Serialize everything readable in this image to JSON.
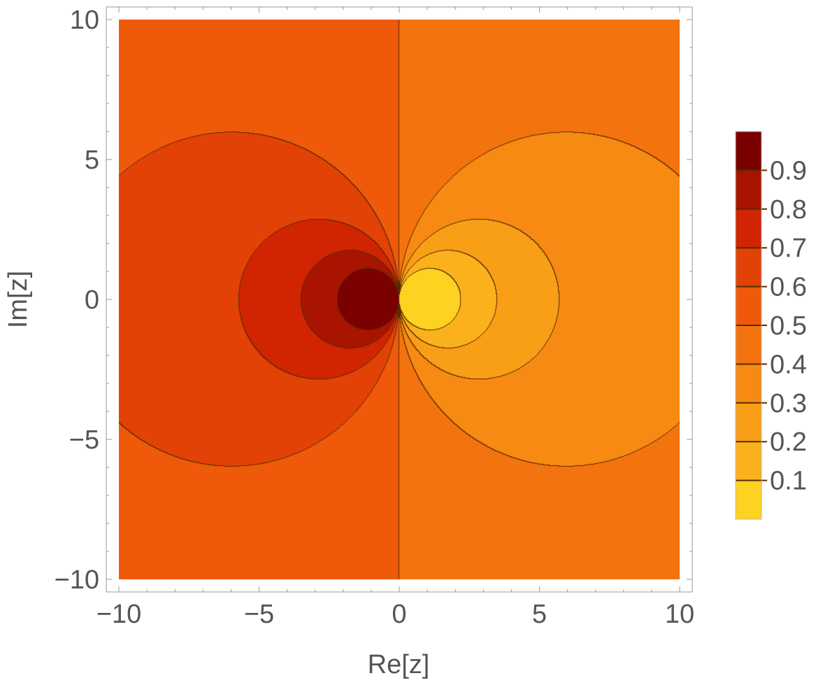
{
  "chart_data": {
    "type": "heatmap",
    "subtype": "contour",
    "title": "",
    "xlabel": "Re[z]",
    "ylabel": "Im[z]",
    "xlim": [
      -10,
      10
    ],
    "ylim": [
      -10,
      10
    ],
    "x_ticks": [
      -10,
      -5,
      0,
      5,
      10
    ],
    "y_ticks": [
      -10,
      -5,
      0,
      5,
      10
    ],
    "x_tick_labels": [
      "−10",
      "−5",
      "0",
      "5",
      "10"
    ],
    "y_tick_labels": [
      "−10",
      "−5",
      "0",
      "5",
      "10"
    ],
    "grid": false,
    "legend": {
      "placement": "right",
      "range": [
        0,
        1
      ],
      "levels": [
        0.1,
        0.2,
        0.3,
        0.4,
        0.5,
        0.6,
        0.7,
        0.8,
        0.9
      ],
      "labels": [
        "0.1",
        "0.2",
        "0.3",
        "0.4",
        "0.5",
        "0.6",
        "0.7",
        "0.8",
        "0.9"
      ]
    },
    "colors": [
      "#fdd220",
      "#fbb11c",
      "#f99f17",
      "#f68a13",
      "#f3740f",
      "#ee5a0a",
      "#e24206",
      "#d02402",
      "#a81400",
      "#7b0000"
    ],
    "contour_line_color": "#5a2a00"
  }
}
